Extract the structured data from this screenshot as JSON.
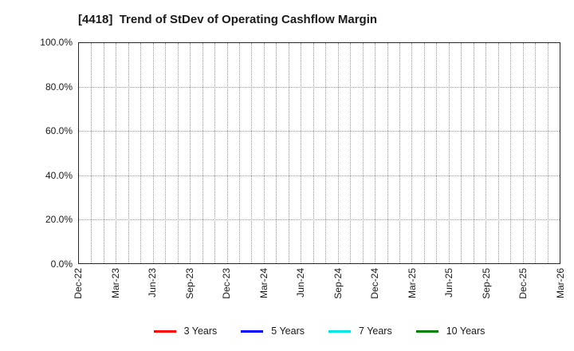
{
  "header": {
    "title": "[4418]  Trend of StDev of Operating Cashflow Margin"
  },
  "chart_data": {
    "type": "line",
    "title": "[4418]  Trend of StDev of Operating Cashflow Margin",
    "x_tick_labels": [
      "Dec-22",
      "Mar-23",
      "Jun-23",
      "Sep-23",
      "Dec-23",
      "Mar-24",
      "Jun-24",
      "Sep-24",
      "Dec-24",
      "Mar-25",
      "Jun-25",
      "Sep-25",
      "Dec-25",
      "Mar-26"
    ],
    "y_tick_labels": [
      "0.0%",
      "20.0%",
      "40.0%",
      "60.0%",
      "80.0%",
      "100.0%"
    ],
    "ylim": [
      0,
      100
    ],
    "y_tick_step_percent": 20,
    "minor_vertical_gridlines_per_interval": 3,
    "grid": true,
    "grid_style": "dotted",
    "grid_color": "#999999",
    "axis_color": "#262626",
    "legend_position": "bottom",
    "series": [
      {
        "name": "3 Years",
        "color": "#ff0000",
        "values": []
      },
      {
        "name": "5 Years",
        "color": "#0000ff",
        "values": []
      },
      {
        "name": "7 Years",
        "color": "#00e5e5",
        "values": []
      },
      {
        "name": "10 Years",
        "color": "#008000",
        "values": []
      }
    ],
    "has_plotted_data": false
  }
}
